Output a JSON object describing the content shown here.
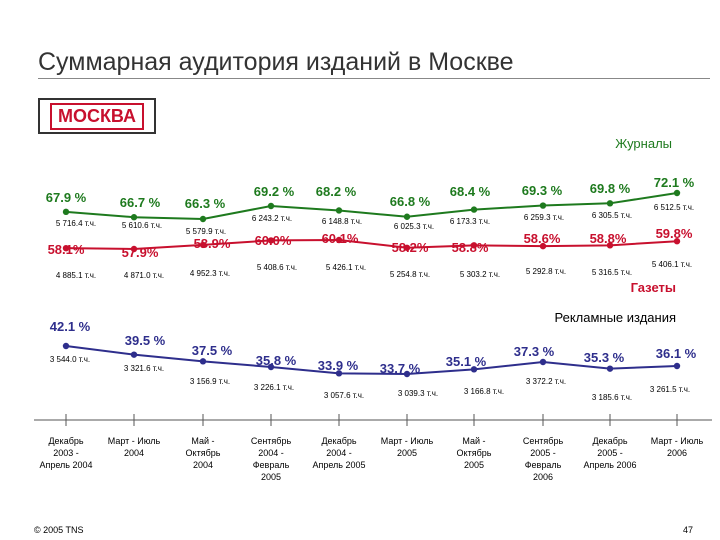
{
  "title": "Суммарная аудитория изданий в Москве",
  "city_label": "МОСКВА",
  "footer": {
    "copyright": "© 2005 TNS",
    "page": "47"
  },
  "colors": {
    "magazines": "#1e7a1e",
    "newspapers": "#c8102e",
    "ads": "#2e2e8c",
    "text": "#000000"
  },
  "chart_data": {
    "type": "line",
    "categories": [
      [
        "Декабрь",
        "2003 -",
        "Апрель 2004"
      ],
      [
        "Март - Июль",
        "2004"
      ],
      [
        "Май -",
        "Октябрь",
        "2004"
      ],
      [
        "Сентябрь",
        "2004 -",
        "Февраль",
        "2005"
      ],
      [
        "Декабрь",
        "2004 -",
        "Апрель 2005"
      ],
      [
        "Март - Июль",
        "2005"
      ],
      [
        "Май -",
        "Октябрь",
        "2005"
      ],
      [
        "Сентябрь",
        "2005 -",
        "Февраль",
        "2006"
      ],
      [
        "Декабрь",
        "2005 -",
        "Апрель 2006"
      ],
      [
        "Март - Июль",
        "2006"
      ]
    ],
    "series": [
      {
        "name": "Журналы",
        "percent_labels": [
          "67.9 %",
          "66.7 %",
          "66.3 %",
          "69.2 %",
          "68.2 %",
          "66.8 %",
          "68.4 %",
          "69.3 %",
          "69.8 %",
          "72.1 %"
        ],
        "values": [
          67.9,
          66.7,
          66.3,
          69.2,
          68.2,
          66.8,
          68.4,
          69.3,
          69.8,
          72.1
        ],
        "count_labels": [
          "5 716.4 т.ч.",
          "5 610.6 т.ч.",
          "5 579.9 т.ч.",
          "6 243.2 т.ч.",
          "6 148.8 т.ч.",
          "6 025.3 т.ч.",
          "6 173.3 т.ч.",
          "6 259.3 т.ч.",
          "6 305.5 т.ч.",
          "6 512.5 т.ч."
        ]
      },
      {
        "name": "Газеты",
        "percent_labels": [
          "58.1%",
          "57.9%",
          "58.9%",
          "60.0%",
          "60.1%",
          "58.2%",
          "58.8%",
          "58.6%",
          "58.8%",
          "59.8%"
        ],
        "values": [
          58.1,
          57.9,
          58.9,
          60.0,
          60.1,
          58.2,
          58.8,
          58.6,
          58.8,
          59.8
        ],
        "count_labels": [
          "4 885.1 т.ч.",
          "4 871.0 т.ч.",
          "4 952.3 т.ч.",
          "5 408.6 т.ч.",
          "5 426.1 т.ч.",
          "5 254.8 т.ч.",
          "5 303.2 т.ч.",
          "5 292.8 т.ч.",
          "5 316.5 т.ч.",
          "5 406.1 т.ч."
        ]
      },
      {
        "name": "Рекламные издания",
        "percent_labels": [
          "42.1 %",
          "39.5 %",
          "37.5 %",
          "35.8 %",
          "33.9 %",
          "33.7 %",
          "35.1 %",
          "37.3 %",
          "35.3 %",
          "36.1 %"
        ],
        "values": [
          42.1,
          39.5,
          37.5,
          35.8,
          33.9,
          33.7,
          35.1,
          37.3,
          35.3,
          36.1
        ],
        "count_labels": [
          "3 544.0 т.ч.",
          "3 321.6 т.ч.",
          "3 156.9 т.ч.",
          "3 226.1 т.ч.",
          "3 057.6 т.ч.",
          "3 039.3 т.ч.",
          "3 166.8 т.ч.",
          "3 372.2 т.ч.",
          "3 185.6 т.ч.",
          "3 261.5 т.ч."
        ]
      }
    ]
  }
}
